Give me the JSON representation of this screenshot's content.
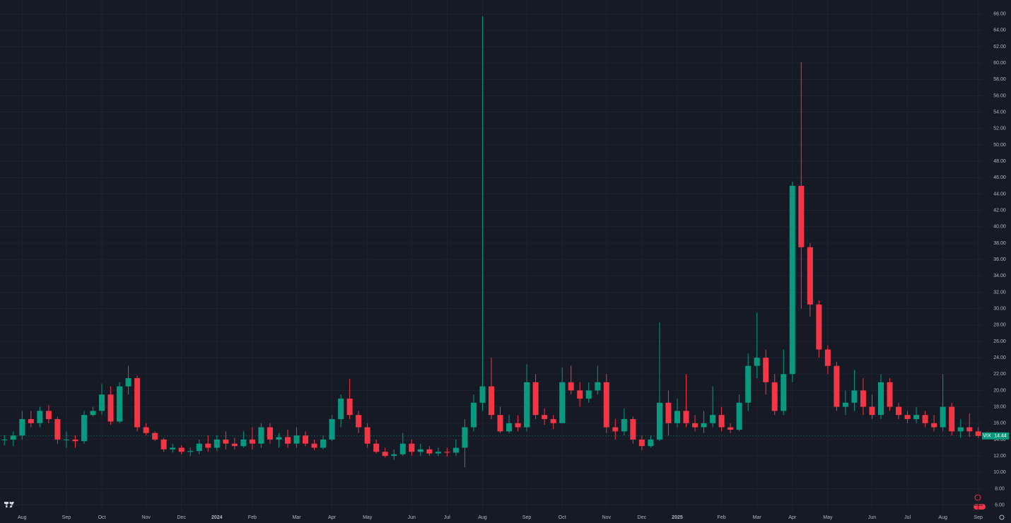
{
  "chart_data": {
    "type": "candlestick",
    "symbol": "VIX",
    "last_price": 14.44,
    "up_color": "#089981",
    "down_color": "#f23645",
    "grid": true,
    "categories": [
      null,
      null,
      "Aug",
      null,
      null,
      null,
      null,
      "Sep",
      null,
      null,
      null,
      "Oct",
      null,
      null,
      null,
      null,
      "Nov",
      null,
      null,
      null,
      "Dec",
      null,
      null,
      null,
      "2024",
      null,
      null,
      null,
      "Feb",
      null,
      null,
      null,
      null,
      "Mar",
      null,
      null,
      null,
      "Apr",
      null,
      null,
      null,
      "May",
      null,
      null,
      null,
      null,
      "Jun",
      null,
      null,
      null,
      "Jul",
      null,
      null,
      null,
      "Aug",
      null,
      null,
      null,
      null,
      "Sep",
      null,
      null,
      null,
      "Oct",
      null,
      null,
      null,
      null,
      "Nov",
      null,
      null,
      null,
      "Dec",
      null,
      null,
      null,
      "2025",
      null,
      null,
      null,
      null,
      "Feb",
      null,
      null,
      null,
      "Mar",
      null,
      null,
      null,
      "Apr",
      null,
      null,
      null,
      "May",
      null,
      null,
      null,
      null,
      "Jun",
      null,
      null,
      null,
      "Jul",
      null,
      null,
      null,
      "Aug",
      null,
      null,
      null,
      "Sep"
    ],
    "open": [
      14,
      14,
      14.5,
      16.5,
      16,
      17.5,
      16.5,
      14,
      14,
      13.8,
      17,
      17.5,
      19.5,
      16.2,
      20.5,
      21.5,
      15.5,
      14.8,
      14,
      12.8,
      13,
      12.5,
      12.6,
      13.5,
      13,
      14,
      13.5,
      13.2,
      14,
      13.5,
      15.5,
      14,
      14.3,
      13.5,
      14.5,
      13.5,
      13,
      14,
      16.5,
      19,
      17,
      15.5,
      13.5,
      12.5,
      12,
      12.2,
      13.5,
      12.5,
      12.8,
      12.3,
      12.5,
      12.4,
      13,
      15.5,
      18.5,
      20.5,
      17,
      15,
      16,
      15.5,
      21,
      17,
      16.5,
      16,
      21,
      20,
      19,
      20,
      21,
      15.5,
      15,
      16.5,
      14,
      13.2,
      14,
      18.5,
      16,
      17.5,
      16,
      15.5,
      16,
      17,
      15.5,
      15.2,
      18.5,
      23,
      24,
      21,
      17.5,
      22,
      45,
      37.5,
      30.5,
      25,
      23,
      18,
      18.5,
      20,
      18,
      17,
      21,
      18,
      17,
      16.5,
      17,
      16,
      15.5,
      18,
      15,
      15.5,
      15
    ],
    "high": [
      14.5,
      15,
      17.5,
      17.5,
      18,
      18.2,
      16.8,
      15,
      14.5,
      17.5,
      18,
      20.8,
      20.5,
      21,
      23,
      21.8,
      16,
      15,
      14.2,
      13.5,
      13.3,
      13,
      14,
      14.5,
      14.5,
      15,
      14.2,
      15,
      15.5,
      16,
      16,
      14.8,
      15.2,
      15.5,
      15,
      14,
      14.5,
      17,
      19.5,
      21.4,
      17.5,
      16,
      14,
      13,
      12.8,
      14.8,
      14,
      13.5,
      13.2,
      13,
      13,
      14,
      16.5,
      19.5,
      65.7,
      24,
      18,
      17,
      17,
      23.2,
      22,
      17.8,
      17,
      22.8,
      23,
      21,
      21,
      23,
      22,
      16.5,
      17.8,
      16.8,
      14.5,
      14.5,
      28.3,
      20,
      19,
      22,
      17,
      17.5,
      20.5,
      18,
      16,
      19.5,
      24.5,
      29.5,
      25,
      22,
      25,
      45.5,
      60.1,
      38,
      31,
      25.5,
      23.5,
      20,
      22.5,
      21.5,
      19.5,
      22,
      21.5,
      18.5,
      17.5,
      18,
      17.5,
      17,
      22,
      18.5,
      16.5,
      17.2,
      15.5
    ],
    "low": [
      13.3,
      13.2,
      14,
      15.5,
      15.5,
      16,
      13.5,
      13,
      13,
      13.5,
      16.8,
      17,
      15.8,
      16,
      19.5,
      15,
      14.5,
      13.8,
      12.5,
      12.4,
      12.2,
      12,
      12.2,
      12.5,
      12.6,
      12.8,
      12.8,
      13,
      12.8,
      13,
      13.5,
      13,
      13,
      13,
      13.2,
      12.7,
      12.8,
      13.8,
      15.5,
      16.5,
      14.8,
      13,
      12.3,
      11.8,
      11.5,
      12,
      12,
      12,
      12,
      12,
      11.9,
      12,
      10.6,
      15,
      17.5,
      16.5,
      14.8,
      14.8,
      15,
      15,
      16.5,
      15.8,
      15.3,
      16,
      19.5,
      18,
      18.5,
      19.5,
      14.8,
      14,
      14.5,
      13.5,
      12.7,
      13,
      13.8,
      14.5,
      15.5,
      15.5,
      15,
      14.8,
      15.5,
      15,
      14.8,
      15,
      17.5,
      21.5,
      19.5,
      17,
      17,
      21,
      30,
      29,
      24,
      22,
      17.5,
      17,
      17.5,
      17,
      16.5,
      16.5,
      17.5,
      16.5,
      16,
      16,
      15.5,
      15,
      15,
      14.5,
      14.2,
      14.3,
      14.2
    ],
    "close": [
      14,
      14.5,
      16.5,
      16,
      17.5,
      16.5,
      14,
      14,
      13.8,
      17,
      17.5,
      19.5,
      16.2,
      20.5,
      21.5,
      15.5,
      14.8,
      14,
      12.8,
      13,
      12.5,
      12.6,
      13.5,
      13,
      14,
      13.5,
      13.2,
      14,
      13.5,
      15.5,
      14,
      14.3,
      13.5,
      14.5,
      13.5,
      13,
      14,
      16.5,
      19,
      17,
      15.5,
      13.5,
      12.5,
      12,
      12.2,
      13.5,
      12.5,
      12.8,
      12.3,
      12.5,
      12.4,
      13,
      15.5,
      18.5,
      20.5,
      17,
      15,
      16,
      15.5,
      21,
      17,
      16.5,
      16,
      21,
      20,
      19,
      20,
      21,
      15.5,
      15,
      16.5,
      14,
      13.2,
      14,
      18.5,
      16,
      17.5,
      16,
      15.5,
      16,
      17,
      15.5,
      15.2,
      18.5,
      23,
      24,
      21,
      17.5,
      22,
      45,
      37.5,
      30.5,
      25,
      23,
      18,
      18.5,
      20,
      18,
      17,
      21,
      18,
      17,
      16.5,
      17,
      16,
      15.5,
      18,
      15,
      15.5,
      15,
      14.44
    ],
    "ylim": [
      5.1,
      67.7
    ],
    "yticks": [
      {
        "value": 6,
        "label": "6.00"
      },
      {
        "value": 8,
        "label": "8.00"
      },
      {
        "value": 10,
        "label": "10.00"
      },
      {
        "value": 12,
        "label": "12.00"
      },
      {
        "value": 14,
        "label": "14.00"
      },
      {
        "value": 16,
        "label": "16.00"
      },
      {
        "value": 18,
        "label": "18.00"
      },
      {
        "value": 20,
        "label": "20.00"
      },
      {
        "value": 22,
        "label": "22.00"
      },
      {
        "value": 24,
        "label": "24.00"
      },
      {
        "value": 26,
        "label": "26.00"
      },
      {
        "value": 28,
        "label": "28.00"
      },
      {
        "value": 30,
        "label": "30.00"
      },
      {
        "value": 32,
        "label": "32.00"
      },
      {
        "value": 34,
        "label": "34.00"
      },
      {
        "value": 36,
        "label": "36.00"
      },
      {
        "value": 38,
        "label": "38.00"
      },
      {
        "value": 40,
        "label": "40.00"
      },
      {
        "value": 42,
        "label": "42.00"
      },
      {
        "value": 44,
        "label": "44.00"
      },
      {
        "value": 46,
        "label": "46.00"
      },
      {
        "value": 48,
        "label": "48.00"
      },
      {
        "value": 50,
        "label": "50.00"
      },
      {
        "value": 52,
        "label": "52.00"
      },
      {
        "value": 54,
        "label": "54.00"
      },
      {
        "value": 56,
        "label": "56.00"
      },
      {
        "value": 58,
        "label": "58.00"
      },
      {
        "value": 60,
        "label": "60.00"
      },
      {
        "value": 62,
        "label": "62.00"
      },
      {
        "value": 64,
        "label": "64.00"
      },
      {
        "value": 66,
        "label": "66.00"
      }
    ]
  }
}
